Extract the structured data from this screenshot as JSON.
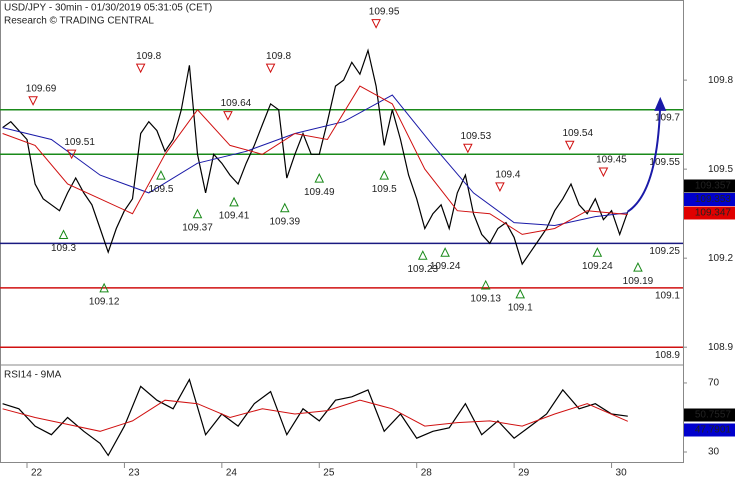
{
  "header": {
    "title": "USD/JPY - 30min - 01/30/2019 05:31:05 (CET)",
    "source": "Research © TRADING CENTRAL"
  },
  "chart_data": [
    {
      "type": "line",
      "xlim": [
        -6.65,
        161.6
      ],
      "ylim": [
        108.84,
        110.07
      ],
      "xticks": [
        {
          "value": 0,
          "label": "22"
        },
        {
          "value": 24,
          "label": "23"
        },
        {
          "value": 48,
          "label": "24"
        },
        {
          "value": 72,
          "label": "25"
        },
        {
          "value": 96,
          "label": "28"
        },
        {
          "value": 120,
          "label": "29"
        },
        {
          "value": 144,
          "label": "30"
        }
      ],
      "yticks": [
        109.8,
        109.5,
        109.2,
        108.9
      ],
      "series": [
        {
          "color": "#000000",
          "x": [
            -6,
            -4,
            -2,
            0,
            2,
            4,
            6,
            8,
            10,
            12,
            14,
            16,
            18,
            20,
            22,
            24,
            26,
            28,
            30,
            32,
            34,
            36,
            38,
            40,
            42,
            44,
            46,
            48,
            50,
            52,
            54,
            56,
            58,
            60,
            62,
            64,
            66,
            68,
            70,
            72,
            74,
            76,
            78,
            80,
            82,
            84,
            86,
            88,
            90,
            92,
            94,
            96,
            98,
            100,
            102,
            104,
            106,
            108,
            110,
            112,
            114,
            116,
            118,
            120,
            122,
            124,
            126,
            128,
            130,
            132,
            134,
            136,
            138,
            140,
            142,
            144,
            146,
            148
          ],
          "values": [
            109.64,
            109.66,
            109.63,
            109.6,
            109.45,
            109.4,
            109.38,
            109.36,
            109.42,
            109.47,
            109.42,
            109.38,
            109.3,
            109.22,
            109.3,
            109.36,
            109.4,
            109.62,
            109.66,
            109.63,
            109.56,
            109.6,
            109.7,
            109.85,
            109.55,
            109.42,
            109.55,
            109.52,
            109.48,
            109.45,
            109.52,
            109.58,
            109.65,
            109.72,
            109.7,
            109.47,
            109.55,
            109.62,
            109.55,
            109.55,
            109.66,
            109.78,
            109.8,
            109.86,
            109.82,
            109.9,
            109.78,
            109.58,
            109.7,
            109.6,
            109.48,
            109.4,
            109.3,
            109.35,
            109.38,
            109.3,
            109.42,
            109.48,
            109.35,
            109.28,
            109.25,
            109.3,
            109.32,
            109.27,
            109.18,
            109.22,
            109.26,
            109.3,
            109.36,
            109.4,
            109.45,
            109.38,
            109.35,
            109.4,
            109.33,
            109.36,
            109.28,
            109.357
          ]
        },
        {
          "color": "#1a1aa8",
          "x": [
            -6,
            6,
            18,
            30,
            42,
            54,
            66,
            78,
            90,
            100,
            110,
            120,
            130,
            140,
            148
          ],
          "values": [
            109.64,
            109.6,
            109.48,
            109.42,
            109.52,
            109.56,
            109.62,
            109.66,
            109.75,
            109.58,
            109.42,
            109.32,
            109.31,
            109.34,
            109.353
          ]
        },
        {
          "color": "#d01010",
          "x": [
            -6,
            2,
            10,
            18,
            26,
            34,
            42,
            50,
            58,
            66,
            74,
            82,
            90,
            98,
            106,
            114,
            122,
            130,
            138,
            148
          ],
          "values": [
            109.62,
            109.58,
            109.45,
            109.4,
            109.35,
            109.55,
            109.7,
            109.58,
            109.55,
            109.62,
            109.6,
            109.78,
            109.72,
            109.5,
            109.36,
            109.35,
            109.28,
            109.3,
            109.36,
            109.347
          ]
        }
      ],
      "levels": [
        {
          "value": 109.7,
          "color": "#1a8a1a"
        },
        {
          "value": 109.55,
          "color": "#1a8a1a"
        },
        {
          "value": 109.25,
          "color": "#1a1a80"
        },
        {
          "value": 109.1,
          "color": "#d01010"
        },
        {
          "value": 108.9,
          "color": "#d01010"
        }
      ],
      "markers": [
        {
          "x": 1.5,
          "value": 109.69,
          "dir": "down"
        },
        {
          "x": 11,
          "value": 109.51,
          "dir": "down"
        },
        {
          "x": 28,
          "value": 109.8,
          "dir": "down"
        },
        {
          "x": 49.5,
          "value": 109.64,
          "dir": "down"
        },
        {
          "x": 60,
          "value": 109.8,
          "dir": "down"
        },
        {
          "x": 86,
          "value": 109.95,
          "dir": "down"
        },
        {
          "x": 108.6,
          "value": 109.53,
          "dir": "down"
        },
        {
          "x": 116.5,
          "value": 109.4,
          "dir": "down"
        },
        {
          "x": 133.7,
          "value": 109.54,
          "dir": "down"
        },
        {
          "x": 142,
          "value": 109.45,
          "dir": "down"
        },
        {
          "x": 9,
          "value": 109.3,
          "dir": "up"
        },
        {
          "x": 19,
          "value": 109.12,
          "dir": "up"
        },
        {
          "x": 33,
          "value": 109.5,
          "dir": "up"
        },
        {
          "x": 42,
          "value": 109.37,
          "dir": "up"
        },
        {
          "x": 51,
          "value": 109.41,
          "dir": "up"
        },
        {
          "x": 63.5,
          "value": 109.39,
          "dir": "up"
        },
        {
          "x": 72,
          "value": 109.49,
          "dir": "up"
        },
        {
          "x": 88,
          "value": 109.5,
          "dir": "up"
        },
        {
          "x": 97.5,
          "value": 109.23,
          "dir": "up"
        },
        {
          "x": 103,
          "value": 109.24,
          "dir": "up"
        },
        {
          "x": 113,
          "value": 109.13,
          "dir": "up"
        },
        {
          "x": 121.5,
          "value": 109.1,
          "dir": "up"
        },
        {
          "x": 140.5,
          "value": 109.24,
          "dir": "up"
        },
        {
          "x": 150.5,
          "value": 109.19,
          "dir": "up"
        }
      ],
      "projection": {
        "color": "#1a1aa8",
        "x": [
          148,
          156
        ],
        "values": [
          109.357,
          109.73
        ]
      }
    },
    {
      "type": "line",
      "title": "RSI14 - 9MA",
      "xlim": [
        -6.65,
        161.6
      ],
      "ylim": [
        24.2,
        80.4
      ],
      "yticks": [
        70,
        30
      ],
      "series": [
        {
          "color": "#000000",
          "x": [
            -6,
            -2,
            2,
            6,
            10,
            14,
            18,
            20,
            24,
            28,
            32,
            36,
            40,
            44,
            48,
            52,
            56,
            60,
            64,
            68,
            72,
            76,
            80,
            84,
            88,
            92,
            96,
            100,
            104,
            108,
            112,
            116,
            120,
            124,
            128,
            132,
            136,
            140,
            144,
            148
          ],
          "values": [
            58,
            55,
            45,
            40,
            50,
            42,
            35,
            28,
            45,
            68,
            60,
            55,
            72,
            40,
            52,
            45,
            58,
            65,
            40,
            55,
            48,
            60,
            62,
            66,
            42,
            52,
            38,
            42,
            44,
            58,
            40,
            48,
            38,
            45,
            52,
            66,
            55,
            58,
            52,
            50.7557
          ]
        },
        {
          "color": "#d01010",
          "x": [
            -6,
            2,
            10,
            18,
            26,
            34,
            42,
            50,
            58,
            66,
            74,
            82,
            90,
            98,
            106,
            114,
            122,
            130,
            138,
            148
          ],
          "values": [
            55,
            50,
            46,
            42,
            48,
            60,
            58,
            50,
            55,
            52,
            54,
            60,
            55,
            45,
            47,
            48,
            45,
            52,
            58,
            47.7901
          ]
        }
      ]
    }
  ]
}
